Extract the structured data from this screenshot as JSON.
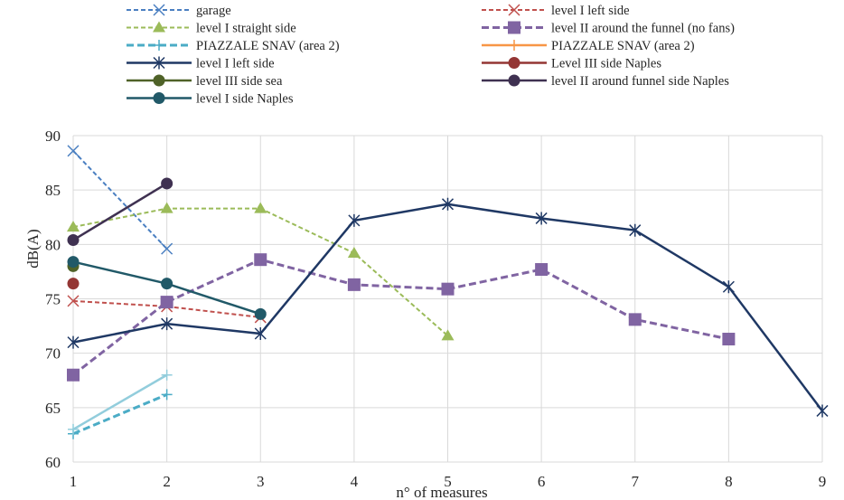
{
  "chart_data": {
    "type": "line",
    "xlabel": "n° of measures",
    "ylabel": "dB(A)",
    "xlim": [
      1,
      9
    ],
    "ylim": [
      60,
      90
    ],
    "x_ticks": [
      1,
      2,
      3,
      4,
      5,
      6,
      7,
      8,
      9
    ],
    "y_ticks": [
      60,
      65,
      70,
      75,
      80,
      85,
      90
    ],
    "grid": "on",
    "legend": "top, two columns",
    "series": [
      {
        "name": "garage",
        "color": "#4a7fc1",
        "dash": "dashed",
        "marker": "x",
        "points": [
          [
            1,
            88.6
          ],
          [
            2,
            79.6
          ]
        ]
      },
      {
        "name": " level I left side",
        "color": "#c0504d",
        "dash": "dashed",
        "marker": "x",
        "points": [
          [
            1,
            74.8
          ],
          [
            2,
            74.3
          ],
          [
            3,
            73.3
          ]
        ]
      },
      {
        "name": "level I straight side",
        "color": "#9bbb59",
        "dash": "dashed",
        "marker": "triangle",
        "points": [
          [
            1,
            81.6
          ],
          [
            2,
            83.3
          ],
          [
            3,
            83.3
          ],
          [
            4,
            79.2
          ],
          [
            5,
            71.6
          ]
        ]
      },
      {
        "name": "level II around the funnel  (no fans)",
        "color": "#8064a2",
        "dash": "dashed-thick",
        "marker": "square",
        "points": [
          [
            1,
            68.0
          ],
          [
            2,
            74.7
          ],
          [
            3,
            78.6
          ],
          [
            4,
            76.3
          ],
          [
            5,
            75.9
          ],
          [
            6,
            77.7
          ],
          [
            7,
            73.1
          ],
          [
            8,
            71.3
          ]
        ]
      },
      {
        "name": "PIAZZALE SNAV (area 2)",
        "color": "#4bacc6",
        "dash": "dashed-thick",
        "marker": "plus",
        "points": [
          [
            1,
            62.6
          ],
          [
            2,
            66.2
          ]
        ]
      },
      {
        "name": "PIAZZALE SNAV (area 2)",
        "color": "#f79646",
        "dash": "solid",
        "marker": "plus",
        "points": []
      },
      {
        "name": " level I left side",
        "color": "#1f3864",
        "dash": "solid",
        "marker": "star",
        "points": [
          [
            1,
            71.0
          ],
          [
            2,
            72.7
          ],
          [
            3,
            71.8
          ],
          [
            4,
            82.2
          ],
          [
            5,
            83.7
          ],
          [
            6,
            82.4
          ],
          [
            7,
            81.3
          ],
          [
            8,
            76.1
          ],
          [
            9,
            64.7
          ]
        ]
      },
      {
        "name": "Level III side Naples",
        "color": "#943634",
        "dash": "solid",
        "marker": "circle",
        "points": [
          [
            1,
            76.4
          ]
        ]
      },
      {
        "name": "level III side sea",
        "color": "#4f6228",
        "dash": "solid",
        "marker": "circle",
        "points": [
          [
            1,
            78.0
          ]
        ]
      },
      {
        "name": "level II around funnel side Naples",
        "color": "#3f3151",
        "dash": "solid",
        "marker": "circle",
        "points": [
          [
            1,
            80.4
          ],
          [
            2,
            85.6
          ]
        ]
      },
      {
        "name": "level I side Naples",
        "color": "#215968",
        "dash": "solid",
        "marker": "circle",
        "points": [
          [
            1,
            78.4
          ],
          [
            2,
            76.4
          ],
          [
            3,
            73.6
          ]
        ]
      },
      {
        "name": "",
        "color": "#92cddc",
        "dash": "solid",
        "marker": "plus",
        "points": [
          [
            1,
            63.0
          ],
          [
            2,
            68.0
          ]
        ]
      }
    ]
  }
}
